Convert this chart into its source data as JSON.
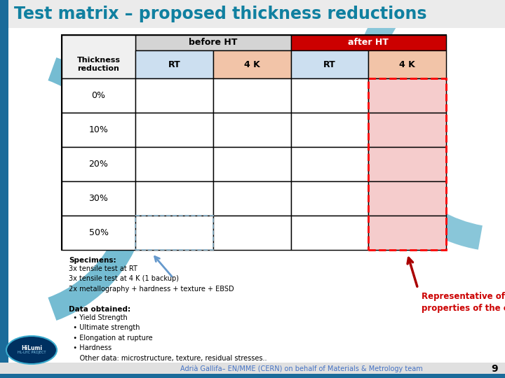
{
  "title": "Test matrix – proposed thickness reductions",
  "title_color": "#1080A0",
  "bg_color": "#FFFFFF",
  "table": {
    "rows": [
      "0%",
      "10%",
      "20%",
      "30%",
      "50%"
    ],
    "col_header_row1": [
      "before HT",
      "after HT"
    ],
    "col_header_row2": [
      "RT",
      "4 K",
      "RT",
      "4 K"
    ],
    "row_label": "Thickness\nreduction",
    "header1_before_color": "#D4D4D4",
    "header1_after_color": "#CC0000",
    "header2_colors": [
      "#CCDFF0",
      "#F2C4A8",
      "#CCDFF0",
      "#F2C4A8"
    ],
    "cell_last_col_color": "#F5CCCC",
    "cell_color": "#FFFFFF",
    "label_cell_color": "#FFFFFF"
  },
  "specimens_bold": "Specimens:",
  "specimens_text": "3x tensile test at RT\n3x tensile test at 4 K (1 backup)\n2x metallography + hardness + texture + EBSD",
  "data_bold": "Data obtained:",
  "data_text": "  • Yield Strength\n  • Ultimate strength\n  • Elongation at rupture\n  • Hardness\n     Other data: microstructure, texture, residual stresses..",
  "rep_text": "Representative of the final\nproperties of the cavity!",
  "rep_color": "#CC0000",
  "bottom_text": "Adrià Gallifa– EN/MME (CERN) on behalf of Materials & Metrology team",
  "bottom_color": "#4472C4",
  "page_num": "9",
  "arrow_left_color": "#6699CC",
  "arrow_right_color": "#AA0000",
  "left_bar_color": "#1A6B9A",
  "left_arc_color": "#3BA0C0",
  "right_arc_color": "#3BA0C0",
  "bottom_bar_color": "#E0E0E0",
  "bottom_stripe_color": "#1A6B9A"
}
